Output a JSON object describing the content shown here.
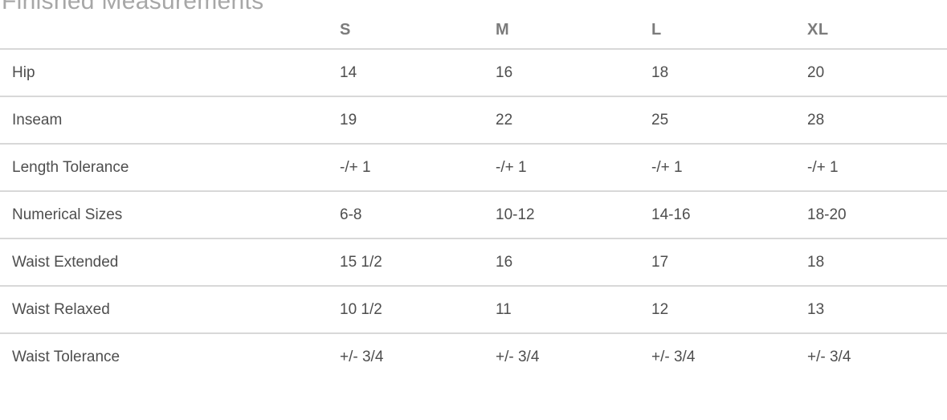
{
  "page": {
    "title": "Finished Measurements"
  },
  "table": {
    "columns": [
      "S",
      "M",
      "L",
      "XL"
    ],
    "rows": [
      {
        "label": "Hip",
        "values": [
          "14",
          "16",
          "18",
          "20"
        ]
      },
      {
        "label": "Inseam",
        "values": [
          "19",
          "22",
          "25",
          "28"
        ]
      },
      {
        "label": "Length Tolerance",
        "values": [
          "-/+ 1",
          "-/+ 1",
          "-/+ 1",
          "-/+ 1"
        ]
      },
      {
        "label": "Numerical Sizes",
        "values": [
          "6-8",
          "10-12",
          "14-16",
          "18-20"
        ]
      },
      {
        "label": "Waist Extended",
        "values": [
          "15 1/2",
          "16",
          "17",
          "18"
        ]
      },
      {
        "label": "Waist Relaxed",
        "values": [
          "10 1/2",
          "11",
          "12",
          "13"
        ]
      },
      {
        "label": "Waist Tolerance",
        "values": [
          "+/- 3/4",
          "+/- 3/4",
          "+/- 3/4",
          "+/- 3/4"
        ]
      }
    ]
  },
  "colors": {
    "background": "#ffffff",
    "title_text": "#a7a7a7",
    "header_text": "#7b7b7b",
    "body_text": "#4e4e4e",
    "border": "#d8d8d8"
  }
}
